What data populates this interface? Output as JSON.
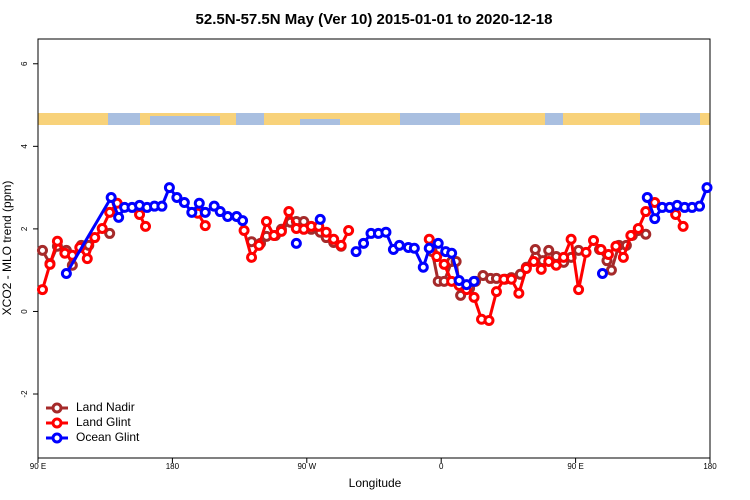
{
  "chart_data": {
    "type": "line",
    "title": "52.5N-57.5N May (Ver 10)   2015-01-01 to 2020-12-18",
    "xlabel": "Longitude",
    "ylabel": "XCO2 - MLO trend (ppm)",
    "xlim": [
      -270,
      180
    ],
    "xticks": [
      {
        "value": -270,
        "label": "90 E"
      },
      {
        "value": -180,
        "label": "180"
      },
      {
        "value": -90,
        "label": "90 W"
      },
      0,
      {
        "value": 90,
        "label": "90 E"
      },
      180
    ],
    "ylim": [
      -3.55,
      6.6
    ],
    "yticks": [
      -2,
      0,
      2,
      4,
      6
    ],
    "legend": "bottom-left",
    "series": [
      {
        "name": "Land Nadir",
        "color": "#a52a2a",
        "x": [
          -267,
          -262,
          -257,
          -251,
          -247,
          -241,
          -236,
          null,
          -222,
          null,
          -127,
          -121,
          -117,
          -111,
          -107,
          -101,
          -97,
          -92,
          -87,
          -81,
          -77,
          -72,
          -67,
          null,
          -6,
          -2,
          2,
          7,
          10,
          13,
          19,
          23,
          28,
          33,
          37,
          43,
          47,
          53,
          57,
          63,
          68,
          72,
          77,
          82,
          87,
          92,
          null,
          106,
          111,
          114,
          119,
          124,
          128,
          132,
          137
        ],
        "values": [
          1.48,
          1.16,
          1.58,
          1.48,
          1.12,
          1.6,
          1.6,
          null,
          1.89,
          null,
          1.69,
          1.65,
          1.82,
          1.84,
          1.99,
          2.16,
          2.18,
          2.18,
          1.99,
          1.92,
          1.79,
          1.67,
          1.58,
          null,
          1.45,
          0.73,
          0.73,
          1.21,
          1.21,
          0.39,
          0.56,
          0.73,
          0.87,
          0.8,
          0.8,
          0.78,
          0.82,
          0.9,
          1.07,
          1.5,
          1.23,
          1.48,
          1.33,
          1.19,
          1.31,
          1.48,
          null,
          1.5,
          1.23,
          1.0,
          1.6,
          1.6,
          1.84,
          1.96,
          1.87
        ]
      },
      {
        "name": "Land Glint",
        "color": "#ff0000",
        "x": [
          -267,
          -262,
          -257,
          -252,
          -247,
          -242,
          -237,
          -232,
          -227,
          -222,
          -217,
          null,
          -202,
          -198,
          null,
          -163,
          -158,
          null,
          -132,
          -127,
          -122,
          -117,
          -112,
          -107,
          -102,
          -97,
          -92,
          -87,
          -82,
          -77,
          -72,
          -67,
          -62,
          null,
          -8,
          -3,
          2,
          7,
          12,
          17,
          22,
          27,
          32,
          37,
          42,
          47,
          52,
          57,
          62,
          67,
          72,
          77,
          82,
          87,
          92,
          97,
          102,
          107,
          112,
          117,
          122,
          127,
          132,
          137,
          143,
          null,
          157,
          162
        ],
        "values": [
          0.53,
          1.14,
          1.7,
          1.41,
          1.36,
          1.55,
          1.28,
          1.79,
          2.01,
          2.4,
          2.62,
          null,
          2.35,
          2.06,
          null,
          2.38,
          2.08,
          null,
          1.96,
          1.31,
          1.6,
          2.18,
          1.84,
          1.94,
          2.42,
          2.01,
          1.99,
          2.06,
          2.06,
          1.92,
          1.75,
          1.6,
          1.96,
          null,
          1.75,
          1.33,
          1.14,
          0.73,
          0.63,
          0.53,
          0.34,
          -0.19,
          -0.22,
          0.48,
          0.78,
          0.78,
          0.44,
          1.04,
          1.21,
          1.02,
          1.21,
          1.12,
          1.31,
          1.75,
          0.53,
          1.43,
          1.72,
          1.5,
          1.38,
          1.58,
          1.31,
          1.84,
          2.01,
          2.42,
          2.64,
          null,
          2.35,
          2.06
        ]
      },
      {
        "name": "Ocean Glint",
        "color": "#0000ff",
        "x": [
          -251,
          -221,
          -216,
          -212,
          -207,
          -202,
          -197,
          -192,
          -187,
          -182,
          -177,
          -172,
          -167,
          -162,
          -158,
          -152,
          -148,
          -143,
          -137,
          -133,
          null,
          -97,
          null,
          -81,
          null,
          -57,
          -52,
          -47,
          -42,
          -37,
          -32,
          -28,
          -22,
          -18,
          -12,
          -8,
          -2,
          3,
          7,
          12,
          17,
          22,
          null,
          108,
          null,
          138,
          143,
          148,
          153,
          158,
          163,
          168,
          173,
          178
        ],
        "values": [
          0.92,
          2.76,
          2.28,
          2.52,
          2.52,
          2.57,
          2.52,
          2.55,
          2.55,
          3.0,
          2.76,
          2.64,
          2.4,
          2.62,
          2.4,
          2.55,
          2.42,
          2.3,
          2.3,
          2.2,
          null,
          1.65,
          null,
          2.23,
          null,
          1.45,
          1.65,
          1.89,
          1.89,
          1.92,
          1.5,
          1.6,
          1.55,
          1.53,
          1.07,
          1.53,
          1.65,
          1.45,
          1.41,
          0.75,
          0.65,
          0.73,
          null,
          0.92,
          null,
          2.76,
          2.25,
          2.52,
          2.52,
          2.57,
          2.52,
          2.52,
          2.55,
          3.0
        ]
      }
    ]
  }
}
